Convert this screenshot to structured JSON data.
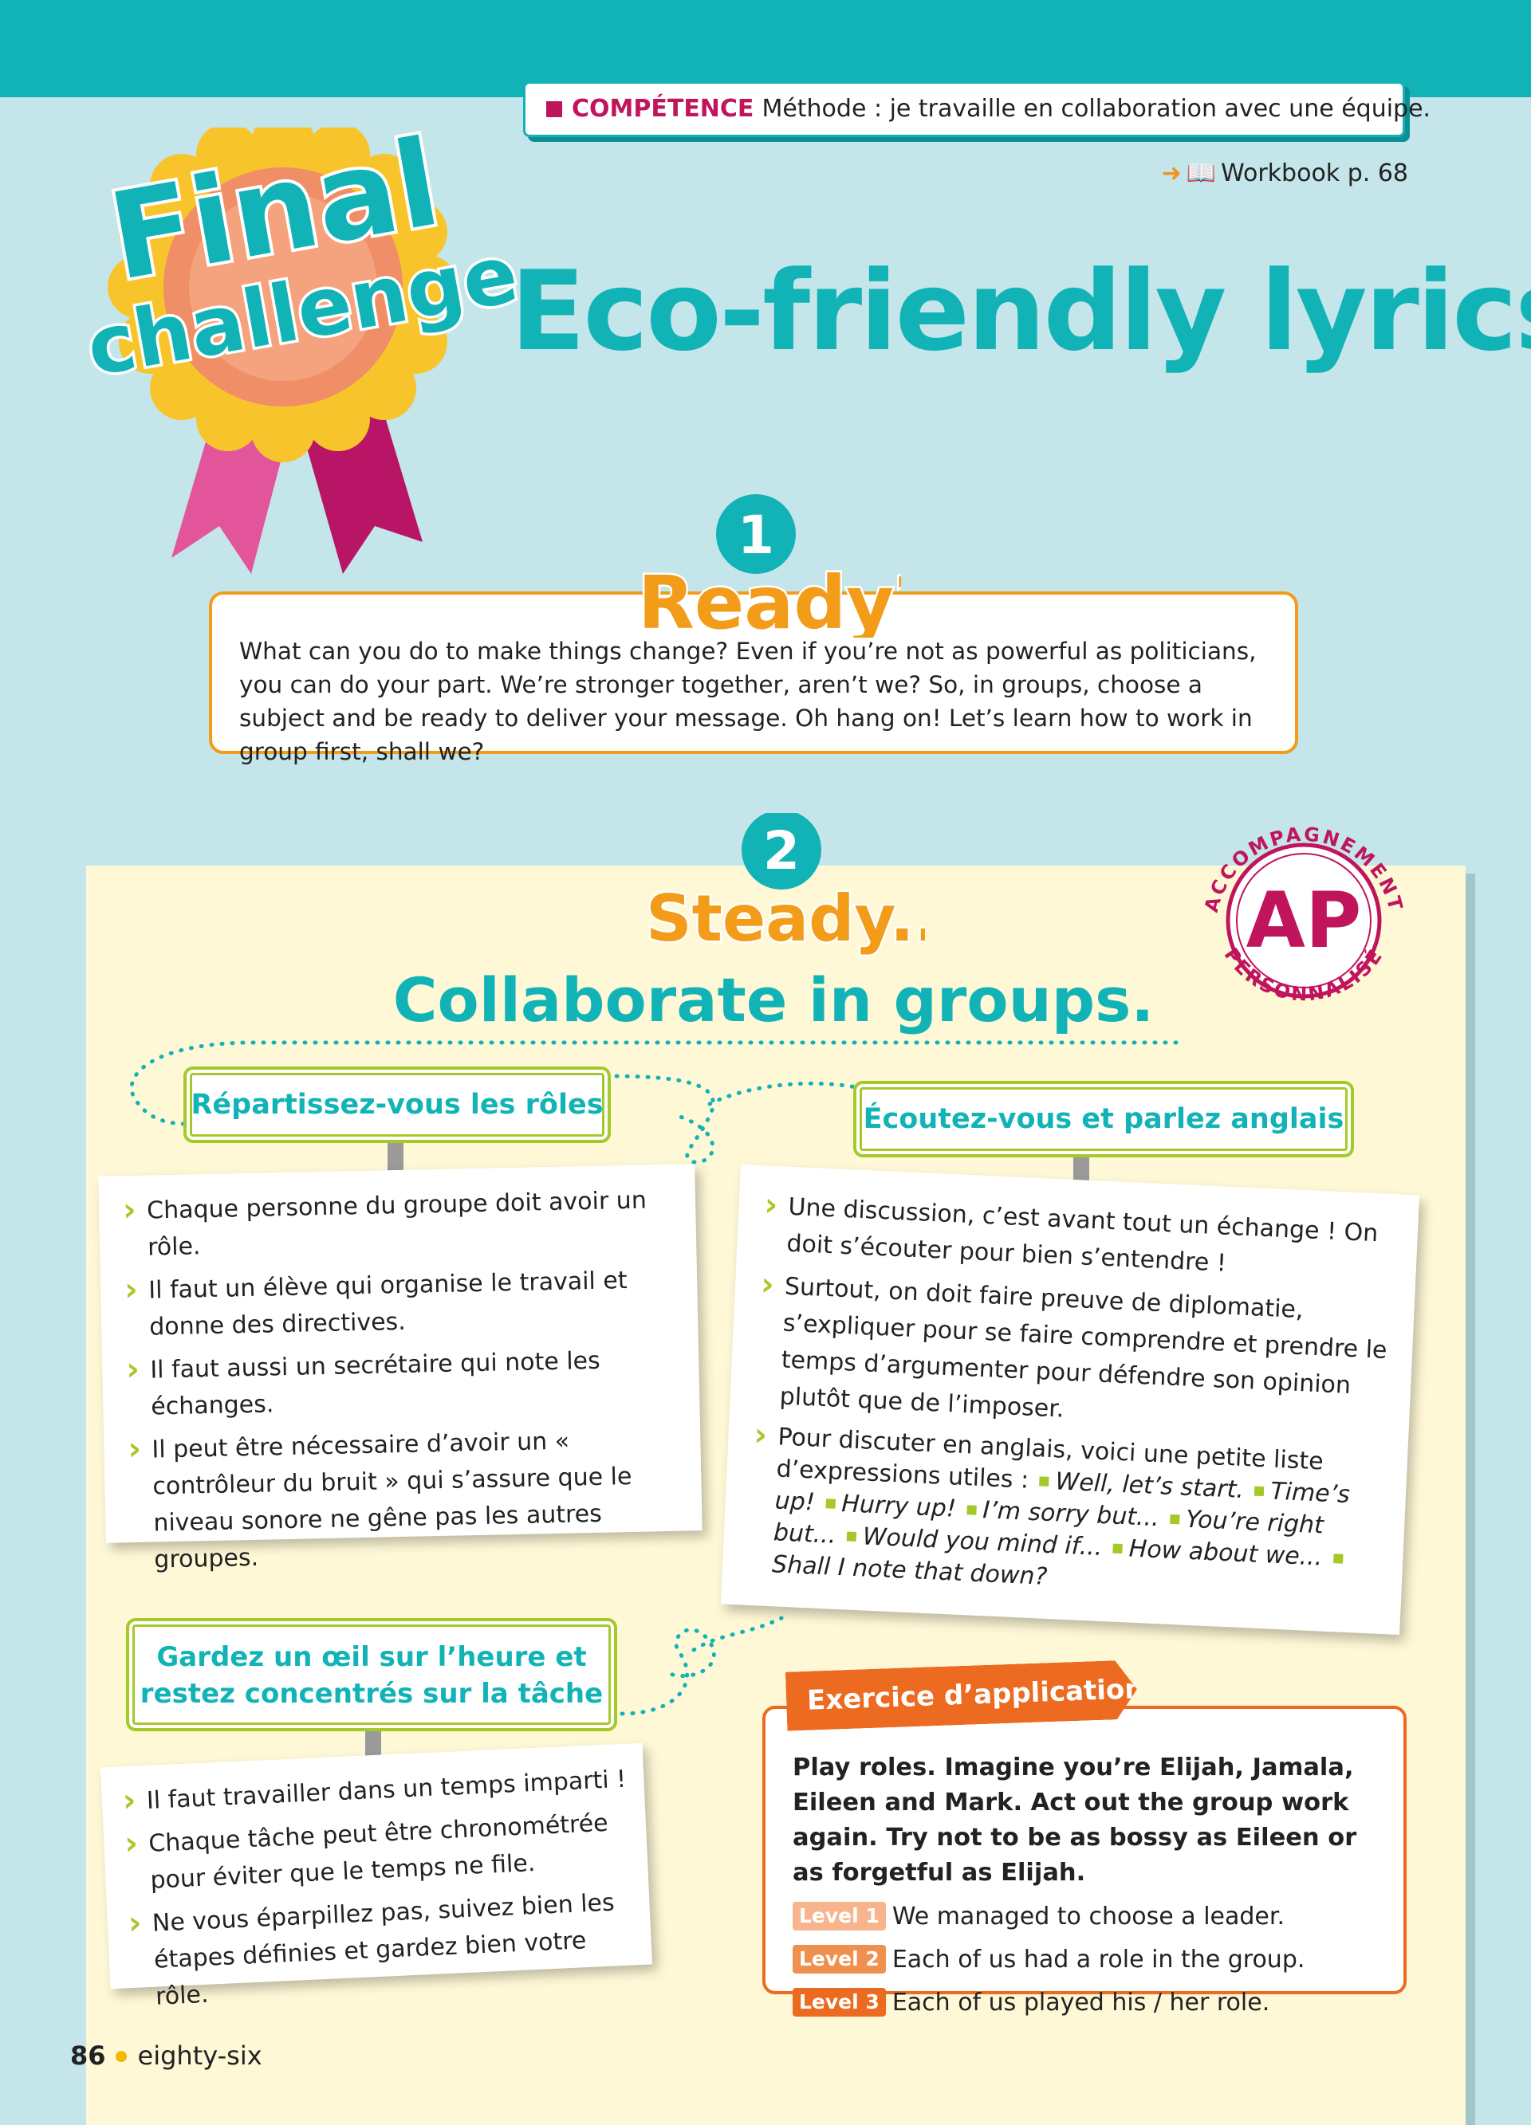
{
  "header": {
    "competence_label": "COMPÉTENCE",
    "competence_text": "Méthode : je travaille en collaboration avec une équipe.",
    "workbook_ref": "Workbook p. 68"
  },
  "badge": {
    "line1": "Final",
    "line2": "challenge"
  },
  "title": "Eco-friendly lyrics",
  "ready": {
    "number": "1",
    "heading": "Ready?",
    "text": "What can you do to make things change? Even if you’re not as powerful as politicians, you can do your part. We’re stronger together, aren’t we? So, in groups, choose a subject and be ready to deliver your message. Oh hang on! Let’s learn how to work in group first, shall we?"
  },
  "steady": {
    "number": "2",
    "heading": "Steady...",
    "title": "Collaborate in groups."
  },
  "ap_stamp": {
    "top": "ACCOMPAGNEMENT",
    "bottom": "PERSONNALISÉ",
    "center": "AP"
  },
  "roles": {
    "heading": "Répartissez-vous les rôles",
    "items": [
      "Chaque personne du groupe doit avoir un rôle.",
      "Il faut un élève qui organise le travail et donne des directives.",
      "Il faut aussi un secrétaire qui note les échanges.",
      "Il peut être nécessaire d’avoir un « contrôleur du bruit » qui s’assure que le niveau sonore ne gêne pas les autres groupes."
    ]
  },
  "listen": {
    "heading": "Écoutez-vous et parlez anglais",
    "items": [
      "Une discussion, c’est avant tout un échange ! On doit s’écouter pour bien s’entendre !",
      "Surtout, on doit faire preuve de diplomatie, s’expliquer pour se faire comprendre et prendre le temps d’argumenter pour défendre son opinion plutôt que de l’imposer."
    ],
    "expressions_intro": "Pour discuter en anglais, voici une petite liste d’expressions utiles :",
    "expressions": [
      "Well, let’s start.",
      "Time’s up!",
      "Hurry up!",
      "I’m sorry but...",
      "You’re right but...",
      "Would you mind if...",
      "How about we...",
      "Shall I note that down?"
    ]
  },
  "time": {
    "heading_line1": "Gardez un œil sur l’heure et",
    "heading_line2": "restez concentrés sur la tâche",
    "items": [
      "Il faut travailler dans un temps imparti !",
      "Chaque tâche peut être chronométrée pour éviter que le temps ne file.",
      "Ne vous éparpillez pas, suivez bien les étapes définies et gardez bien votre rôle."
    ]
  },
  "exercise": {
    "tab": "Exercice d’application",
    "instruction": "Play roles. Imagine you’re Elijah, Jamala, Eileen and Mark. Act out the group work again. Try not to be as bossy as Eileen or as forgetful as Elijah.",
    "levels": [
      {
        "tag": "Level 1",
        "text": "We managed to choose a leader."
      },
      {
        "tag": "Level 2",
        "text": "Each of us had a role in the group."
      },
      {
        "tag": "Level 3",
        "text": "Each of us played his / her role."
      }
    ]
  },
  "footer": {
    "page_number": "86",
    "page_words": "eighty-six"
  },
  "colors": {
    "teal": "#12b3b6",
    "magenta": "#c0155c",
    "orange": "#ec6b20",
    "yellow": "#f39c1a",
    "green": "#a6c92a",
    "paper": "#fef8d6"
  }
}
